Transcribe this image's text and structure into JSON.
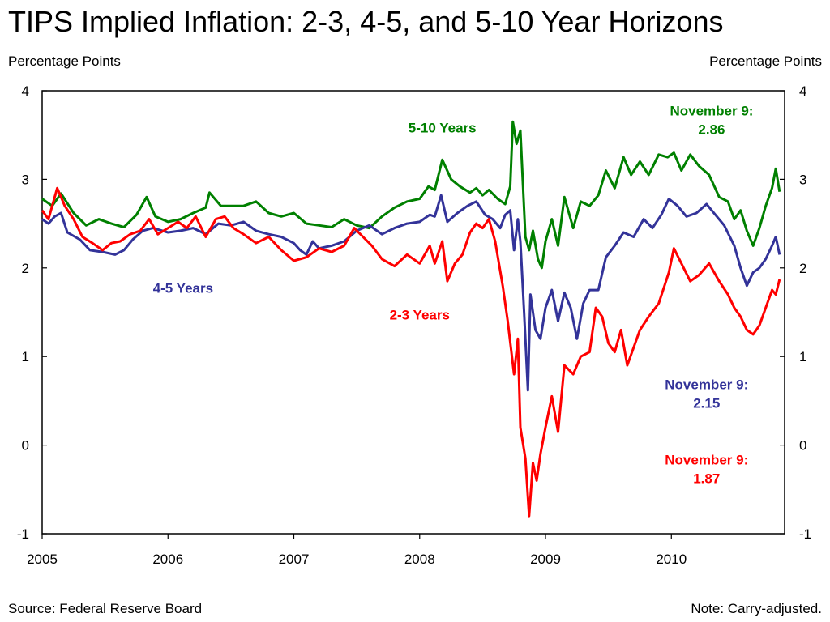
{
  "title": "TIPS Implied Inflation: 2-3, 4-5, and 5-10 Year Horizons",
  "units_left": "Percentage Points",
  "units_right": "Percentage Points",
  "source": "Source:  Federal Reserve Board",
  "note": "Note:  Carry-adjusted.",
  "colors": {
    "s23": "#ff0000",
    "s45": "#333399",
    "s510": "#008000"
  },
  "chart_data": {
    "type": "line",
    "title": "TIPS Implied Inflation: 2-3, 4-5, and 5-10 Year Horizons",
    "xlabel": "",
    "ylabel": "Percentage Points",
    "xlim": [
      2005.0,
      2010.9
    ],
    "ylim": [
      -1,
      4
    ],
    "y_ticks": [
      "-1",
      "0",
      "1",
      "2",
      "3",
      "4"
    ],
    "x_ticks": [
      "2005",
      "2006",
      "2007",
      "2008",
      "2009",
      "2010"
    ],
    "grid": false,
    "series": [
      {
        "name": "5-10 Years",
        "color": "#008000",
        "points": [
          [
            2005.0,
            2.78
          ],
          [
            2005.08,
            2.7
          ],
          [
            2005.15,
            2.84
          ],
          [
            2005.25,
            2.62
          ],
          [
            2005.35,
            2.48
          ],
          [
            2005.45,
            2.55
          ],
          [
            2005.55,
            2.5
          ],
          [
            2005.65,
            2.46
          ],
          [
            2005.75,
            2.6
          ],
          [
            2005.83,
            2.8
          ],
          [
            2005.9,
            2.58
          ],
          [
            2006.0,
            2.52
          ],
          [
            2006.1,
            2.55
          ],
          [
            2006.2,
            2.62
          ],
          [
            2006.3,
            2.68
          ],
          [
            2006.33,
            2.85
          ],
          [
            2006.42,
            2.7
          ],
          [
            2006.5,
            2.7
          ],
          [
            2006.6,
            2.7
          ],
          [
            2006.7,
            2.75
          ],
          [
            2006.8,
            2.62
          ],
          [
            2006.9,
            2.58
          ],
          [
            2007.0,
            2.62
          ],
          [
            2007.1,
            2.5
          ],
          [
            2007.2,
            2.48
          ],
          [
            2007.3,
            2.46
          ],
          [
            2007.4,
            2.55
          ],
          [
            2007.5,
            2.48
          ],
          [
            2007.6,
            2.45
          ],
          [
            2007.7,
            2.58
          ],
          [
            2007.8,
            2.68
          ],
          [
            2007.9,
            2.75
          ],
          [
            2008.0,
            2.78
          ],
          [
            2008.07,
            2.92
          ],
          [
            2008.12,
            2.88
          ],
          [
            2008.18,
            3.22
          ],
          [
            2008.25,
            3.0
          ],
          [
            2008.32,
            2.92
          ],
          [
            2008.4,
            2.85
          ],
          [
            2008.45,
            2.9
          ],
          [
            2008.5,
            2.82
          ],
          [
            2008.55,
            2.88
          ],
          [
            2008.62,
            2.78
          ],
          [
            2008.68,
            2.72
          ],
          [
            2008.72,
            2.92
          ],
          [
            2008.74,
            3.65
          ],
          [
            2008.77,
            3.4
          ],
          [
            2008.8,
            3.55
          ],
          [
            2008.84,
            2.35
          ],
          [
            2008.87,
            2.2
          ],
          [
            2008.9,
            2.42
          ],
          [
            2008.94,
            2.1
          ],
          [
            2008.97,
            2.0
          ],
          [
            2009.0,
            2.3
          ],
          [
            2009.05,
            2.55
          ],
          [
            2009.1,
            2.25
          ],
          [
            2009.15,
            2.8
          ],
          [
            2009.22,
            2.45
          ],
          [
            2009.28,
            2.75
          ],
          [
            2009.35,
            2.7
          ],
          [
            2009.42,
            2.82
          ],
          [
            2009.48,
            3.1
          ],
          [
            2009.55,
            2.9
          ],
          [
            2009.62,
            3.25
          ],
          [
            2009.68,
            3.05
          ],
          [
            2009.75,
            3.2
          ],
          [
            2009.82,
            3.05
          ],
          [
            2009.9,
            3.28
          ],
          [
            2009.97,
            3.25
          ],
          [
            2010.02,
            3.3
          ],
          [
            2010.08,
            3.1
          ],
          [
            2010.15,
            3.28
          ],
          [
            2010.22,
            3.15
          ],
          [
            2010.3,
            3.05
          ],
          [
            2010.38,
            2.8
          ],
          [
            2010.45,
            2.75
          ],
          [
            2010.5,
            2.55
          ],
          [
            2010.55,
            2.65
          ],
          [
            2010.6,
            2.42
          ],
          [
            2010.65,
            2.25
          ],
          [
            2010.7,
            2.45
          ],
          [
            2010.75,
            2.7
          ],
          [
            2010.8,
            2.9
          ],
          [
            2010.83,
            3.12
          ],
          [
            2010.86,
            2.86
          ]
        ]
      },
      {
        "name": "4-5 Years",
        "color": "#333399",
        "points": [
          [
            2005.0,
            2.55
          ],
          [
            2005.05,
            2.5
          ],
          [
            2005.1,
            2.58
          ],
          [
            2005.15,
            2.62
          ],
          [
            2005.2,
            2.4
          ],
          [
            2005.3,
            2.32
          ],
          [
            2005.38,
            2.2
          ],
          [
            2005.48,
            2.18
          ],
          [
            2005.58,
            2.15
          ],
          [
            2005.65,
            2.2
          ],
          [
            2005.72,
            2.32
          ],
          [
            2005.8,
            2.42
          ],
          [
            2005.88,
            2.45
          ],
          [
            2006.0,
            2.4
          ],
          [
            2006.1,
            2.42
          ],
          [
            2006.2,
            2.45
          ],
          [
            2006.3,
            2.38
          ],
          [
            2006.4,
            2.5
          ],
          [
            2006.5,
            2.48
          ],
          [
            2006.6,
            2.52
          ],
          [
            2006.7,
            2.42
          ],
          [
            2006.8,
            2.38
          ],
          [
            2006.9,
            2.35
          ],
          [
            2007.0,
            2.28
          ],
          [
            2007.05,
            2.2
          ],
          [
            2007.1,
            2.15
          ],
          [
            2007.15,
            2.3
          ],
          [
            2007.2,
            2.22
          ],
          [
            2007.3,
            2.25
          ],
          [
            2007.4,
            2.3
          ],
          [
            2007.5,
            2.42
          ],
          [
            2007.6,
            2.48
          ],
          [
            2007.7,
            2.38
          ],
          [
            2007.8,
            2.45
          ],
          [
            2007.9,
            2.5
          ],
          [
            2008.0,
            2.52
          ],
          [
            2008.08,
            2.6
          ],
          [
            2008.12,
            2.58
          ],
          [
            2008.17,
            2.82
          ],
          [
            2008.22,
            2.52
          ],
          [
            2008.3,
            2.62
          ],
          [
            2008.38,
            2.7
          ],
          [
            2008.45,
            2.75
          ],
          [
            2008.52,
            2.6
          ],
          [
            2008.58,
            2.55
          ],
          [
            2008.64,
            2.45
          ],
          [
            2008.68,
            2.6
          ],
          [
            2008.72,
            2.65
          ],
          [
            2008.75,
            2.2
          ],
          [
            2008.78,
            2.55
          ],
          [
            2008.8,
            2.3
          ],
          [
            2008.83,
            1.5
          ],
          [
            2008.86,
            0.62
          ],
          [
            2008.88,
            1.7
          ],
          [
            2008.92,
            1.3
          ],
          [
            2008.96,
            1.2
          ],
          [
            2009.0,
            1.55
          ],
          [
            2009.05,
            1.75
          ],
          [
            2009.1,
            1.4
          ],
          [
            2009.15,
            1.72
          ],
          [
            2009.2,
            1.55
          ],
          [
            2009.25,
            1.2
          ],
          [
            2009.3,
            1.6
          ],
          [
            2009.35,
            1.75
          ],
          [
            2009.42,
            1.75
          ],
          [
            2009.48,
            2.12
          ],
          [
            2009.55,
            2.25
          ],
          [
            2009.62,
            2.4
          ],
          [
            2009.7,
            2.35
          ],
          [
            2009.78,
            2.55
          ],
          [
            2009.85,
            2.45
          ],
          [
            2009.92,
            2.6
          ],
          [
            2009.98,
            2.78
          ],
          [
            2010.05,
            2.7
          ],
          [
            2010.12,
            2.58
          ],
          [
            2010.2,
            2.62
          ],
          [
            2010.28,
            2.72
          ],
          [
            2010.35,
            2.6
          ],
          [
            2010.42,
            2.48
          ],
          [
            2010.5,
            2.25
          ],
          [
            2010.55,
            2.0
          ],
          [
            2010.6,
            1.8
          ],
          [
            2010.65,
            1.95
          ],
          [
            2010.7,
            2.0
          ],
          [
            2010.75,
            2.1
          ],
          [
            2010.8,
            2.25
          ],
          [
            2010.83,
            2.35
          ],
          [
            2010.86,
            2.15
          ]
        ]
      },
      {
        "name": "2-3 Years",
        "color": "#ff0000",
        "points": [
          [
            2005.0,
            2.65
          ],
          [
            2005.05,
            2.55
          ],
          [
            2005.12,
            2.9
          ],
          [
            2005.18,
            2.7
          ],
          [
            2005.25,
            2.55
          ],
          [
            2005.32,
            2.35
          ],
          [
            2005.4,
            2.28
          ],
          [
            2005.48,
            2.2
          ],
          [
            2005.55,
            2.28
          ],
          [
            2005.62,
            2.3
          ],
          [
            2005.7,
            2.38
          ],
          [
            2005.78,
            2.42
          ],
          [
            2005.85,
            2.55
          ],
          [
            2005.92,
            2.38
          ],
          [
            2006.0,
            2.45
          ],
          [
            2006.08,
            2.52
          ],
          [
            2006.15,
            2.45
          ],
          [
            2006.22,
            2.58
          ],
          [
            2006.3,
            2.35
          ],
          [
            2006.38,
            2.55
          ],
          [
            2006.45,
            2.58
          ],
          [
            2006.52,
            2.45
          ],
          [
            2006.6,
            2.38
          ],
          [
            2006.7,
            2.28
          ],
          [
            2006.8,
            2.35
          ],
          [
            2006.9,
            2.2
          ],
          [
            2007.0,
            2.08
          ],
          [
            2007.1,
            2.12
          ],
          [
            2007.2,
            2.22
          ],
          [
            2007.3,
            2.18
          ],
          [
            2007.4,
            2.25
          ],
          [
            2007.48,
            2.45
          ],
          [
            2007.55,
            2.35
          ],
          [
            2007.62,
            2.25
          ],
          [
            2007.7,
            2.1
          ],
          [
            2007.8,
            2.02
          ],
          [
            2007.9,
            2.15
          ],
          [
            2008.0,
            2.05
          ],
          [
            2008.08,
            2.25
          ],
          [
            2008.12,
            2.05
          ],
          [
            2008.18,
            2.3
          ],
          [
            2008.22,
            1.85
          ],
          [
            2008.28,
            2.05
          ],
          [
            2008.34,
            2.15
          ],
          [
            2008.4,
            2.4
          ],
          [
            2008.45,
            2.5
          ],
          [
            2008.5,
            2.45
          ],
          [
            2008.55,
            2.55
          ],
          [
            2008.6,
            2.3
          ],
          [
            2008.66,
            1.8
          ],
          [
            2008.7,
            1.4
          ],
          [
            2008.75,
            0.8
          ],
          [
            2008.78,
            1.2
          ],
          [
            2008.8,
            0.2
          ],
          [
            2008.84,
            -0.15
          ],
          [
            2008.87,
            -0.8
          ],
          [
            2008.9,
            -0.2
          ],
          [
            2008.93,
            -0.4
          ],
          [
            2008.96,
            -0.1
          ],
          [
            2009.0,
            0.2
          ],
          [
            2009.05,
            0.55
          ],
          [
            2009.1,
            0.15
          ],
          [
            2009.15,
            0.9
          ],
          [
            2009.22,
            0.8
          ],
          [
            2009.28,
            1.0
          ],
          [
            2009.35,
            1.05
          ],
          [
            2009.4,
            1.55
          ],
          [
            2009.45,
            1.45
          ],
          [
            2009.5,
            1.15
          ],
          [
            2009.55,
            1.05
          ],
          [
            2009.6,
            1.3
          ],
          [
            2009.65,
            0.9
          ],
          [
            2009.7,
            1.1
          ],
          [
            2009.75,
            1.3
          ],
          [
            2009.82,
            1.45
          ],
          [
            2009.9,
            1.6
          ],
          [
            2009.98,
            1.95
          ],
          [
            2010.02,
            2.22
          ],
          [
            2010.08,
            2.05
          ],
          [
            2010.15,
            1.85
          ],
          [
            2010.22,
            1.92
          ],
          [
            2010.3,
            2.05
          ],
          [
            2010.38,
            1.85
          ],
          [
            2010.45,
            1.7
          ],
          [
            2010.5,
            1.55
          ],
          [
            2010.55,
            1.45
          ],
          [
            2010.6,
            1.3
          ],
          [
            2010.65,
            1.25
          ],
          [
            2010.7,
            1.35
          ],
          [
            2010.75,
            1.55
          ],
          [
            2010.8,
            1.75
          ],
          [
            2010.83,
            1.7
          ],
          [
            2010.86,
            1.87
          ]
        ]
      }
    ],
    "annotations": [
      {
        "text": "5-10 Years",
        "color": "#008000",
        "x": 2008.18,
        "y": 3.53
      },
      {
        "text": "4-5 Years",
        "color": "#333399",
        "x": 2006.12,
        "y": 1.72
      },
      {
        "text": "2-3 Years",
        "color": "#ff0000",
        "x": 2008.0,
        "y": 1.42
      },
      {
        "text": "November  9:",
        "value": "2.86",
        "color": "#008000",
        "x": 2010.32,
        "y": 3.72
      },
      {
        "text": "November  9:",
        "value": "2.15",
        "color": "#333399",
        "x": 2010.28,
        "y": 0.63
      },
      {
        "text": "November 9:",
        "value": "1.87",
        "color": "#ff0000",
        "x": 2010.28,
        "y": -0.22
      }
    ]
  }
}
